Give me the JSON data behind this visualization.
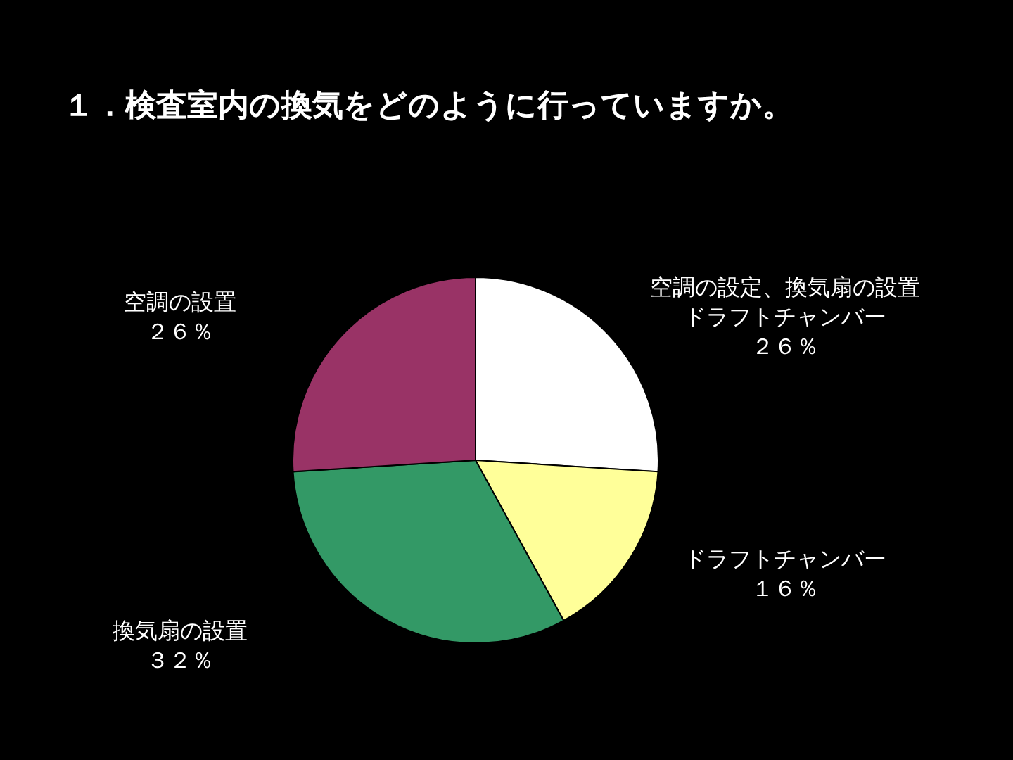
{
  "chart_data": {
    "type": "pie",
    "title": "１．検査室内の換気をどのように行っていますか。",
    "categories": [
      "空調の設定、換気扇の設置ドラフトチャンバー",
      "ドラフトチャンバー",
      "換気扇の設置",
      "空調の設置"
    ],
    "values": [
      26,
      16,
      32,
      26
    ],
    "value_labels": [
      "２６％",
      "１６％",
      "３２％",
      "２６％"
    ],
    "colors": [
      "#ffffff",
      "#ffff99",
      "#339966",
      "#993366"
    ],
    "legend": false
  }
}
